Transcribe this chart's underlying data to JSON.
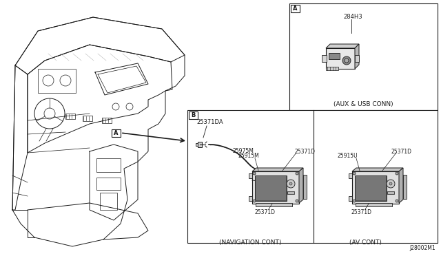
{
  "bg_color": "#ffffff",
  "line_color": "#1a1a1a",
  "gray_light": "#c8c8c8",
  "gray_med": "#999999",
  "gray_dark": "#555555",
  "font_size_small": 5.5,
  "font_size_label": 6.0,
  "font_size_caption": 6.5,
  "diagram_id": "J28002M1",
  "part_284H3": "284H3",
  "caption_A": "(AUX & USB CONN)",
  "part_25371DA": "25371DA",
  "part_25975M": "25975M",
  "part_25915M": "25915M",
  "part_25371D_1": "25371D",
  "part_25371D_2": "25371D",
  "caption_nav": "(NAVIGATION CONT)",
  "part_25371D_3": "25371D",
  "part_25371D_4": "25371D",
  "part_25915U": "25915U",
  "caption_av": "(AV CONT)",
  "section_A": "A",
  "section_B": "B"
}
